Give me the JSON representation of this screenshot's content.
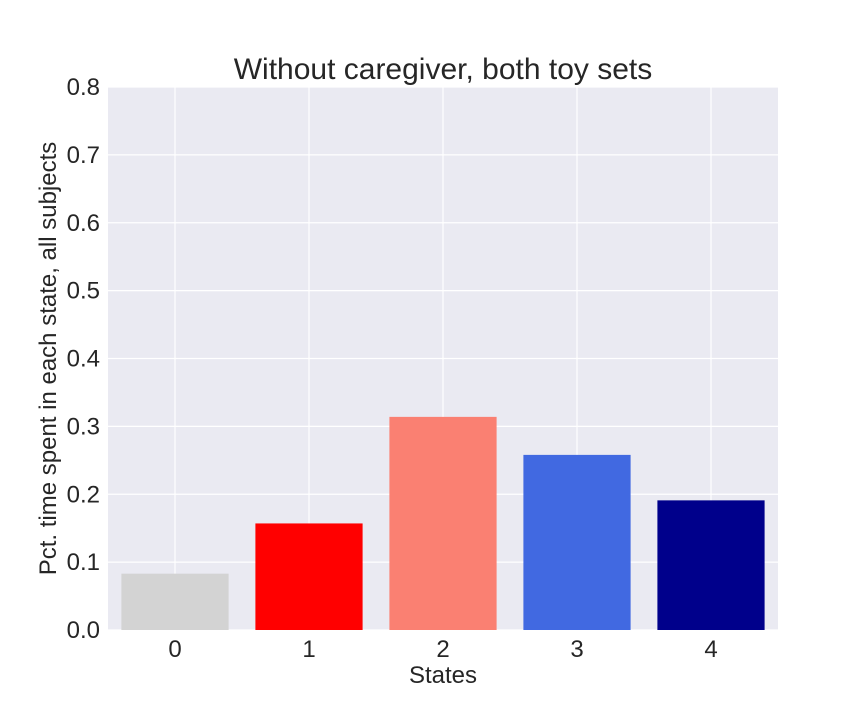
{
  "chart_data": {
    "type": "bar",
    "title": "Without caregiver, both toy sets",
    "xlabel": "States",
    "ylabel": "Pct. time spent in each state, all subjects",
    "categories": [
      "0",
      "1",
      "2",
      "3",
      "4"
    ],
    "values": [
      0.083,
      0.157,
      0.314,
      0.258,
      0.191
    ],
    "colors": [
      "#d3d3d3",
      "#ff0000",
      "#fa8072",
      "#4169e1",
      "#00008b"
    ],
    "ylim": [
      0,
      0.8
    ],
    "yticks": [
      "0.0",
      "0.1",
      "0.2",
      "0.3",
      "0.4",
      "0.5",
      "0.6",
      "0.7",
      "0.8"
    ],
    "grid": true,
    "style": {
      "plot_background": "#eaeaf2",
      "grid_color": "#ffffff"
    }
  }
}
